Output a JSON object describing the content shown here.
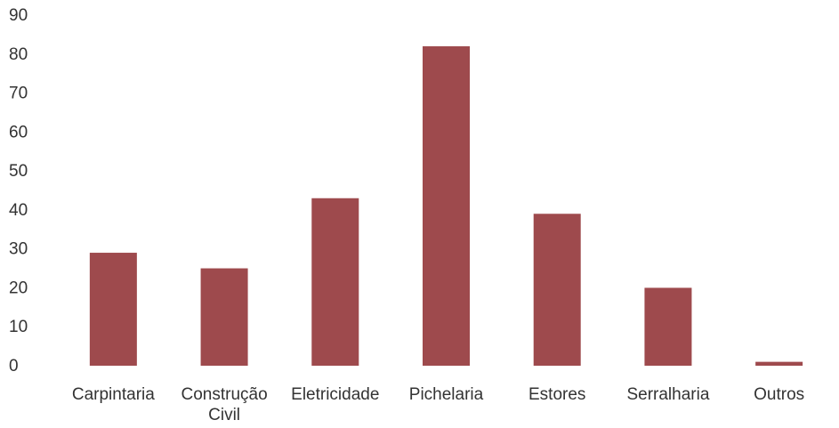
{
  "chart_data": {
    "type": "bar",
    "categories": [
      [
        "Carpintaria"
      ],
      [
        "Construção",
        "Civil"
      ],
      [
        "Eletricidade"
      ],
      [
        "Pichelaria"
      ],
      [
        "Estores"
      ],
      [
        "Serralharia"
      ],
      [
        "Outros"
      ]
    ],
    "values": [
      29,
      25,
      43,
      82,
      39,
      20,
      1
    ],
    "title": "",
    "xlabel": "",
    "ylabel": "",
    "ylim": [
      0,
      90
    ],
    "yticks": [
      "0",
      "10",
      "20",
      "30",
      "40",
      "50",
      "60",
      "70",
      "80",
      "90"
    ],
    "grid": false,
    "legend": "none",
    "bar_color": "#9e4a4d"
  }
}
